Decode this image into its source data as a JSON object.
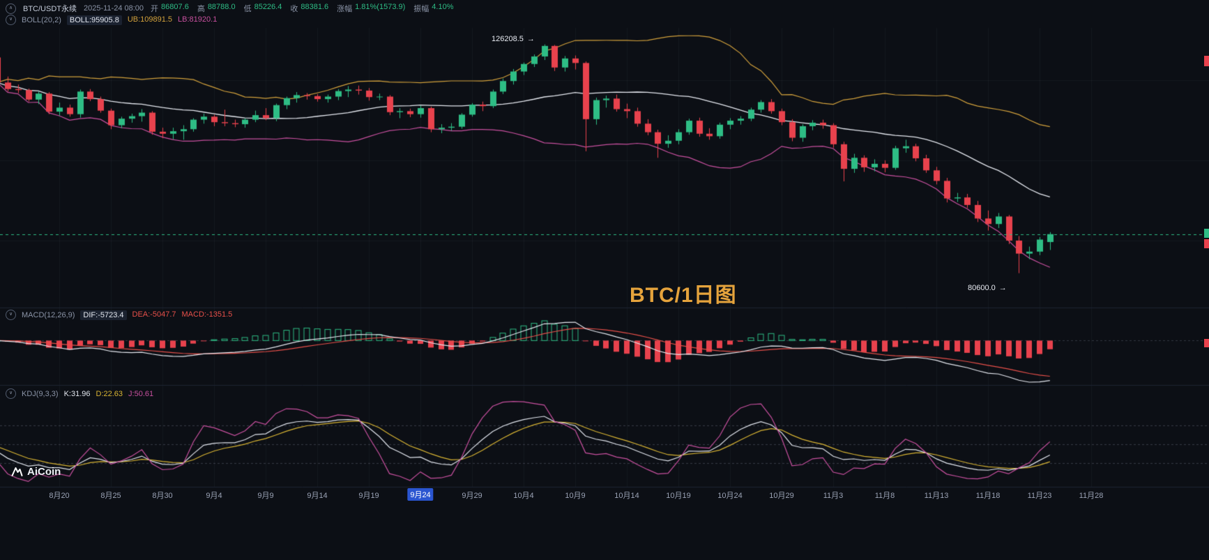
{
  "header": {
    "symbol": "BTC/USDT永续",
    "datetime": "2025-11-24 08:00",
    "fields": [
      {
        "label": "开",
        "value": "86807.6"
      },
      {
        "label": "高",
        "value": "88788.0"
      },
      {
        "label": "低",
        "value": "85226.4"
      },
      {
        "label": "收",
        "value": "88381.6"
      },
      {
        "label": "涨幅",
        "value": "1.81%(1573.9)"
      },
      {
        "label": "振幅",
        "value": "4.10%"
      }
    ]
  },
  "indicators": {
    "boll": {
      "name": "BOLL(20,2)",
      "items": [
        {
          "label": "BOLL:95905.8",
          "color": "#e2e6ee",
          "chip": true
        },
        {
          "label": "UB:109891.5",
          "color": "#d2a13c"
        },
        {
          "label": "LB:81920.1",
          "color": "#c8509f"
        }
      ]
    },
    "macd": {
      "name": "MACD(12,26,9)",
      "items": [
        {
          "label": "DIF:-5723.4",
          "color": "#e2e6ee",
          "chip": true
        },
        {
          "label": "DEA:-5047.7",
          "color": "#e8504a"
        },
        {
          "label": "MACD:-1351.5",
          "color": "#e8504a"
        }
      ]
    },
    "kdj": {
      "name": "KDJ(9,3,3)",
      "items": [
        {
          "label": "K:31.96",
          "color": "#e2e6ee"
        },
        {
          "label": "D:22.63",
          "color": "#d8b433"
        },
        {
          "label": "J:50.61",
          "color": "#c8509f"
        }
      ]
    }
  },
  "annotations": {
    "high": "126208.5",
    "low": "80600.0",
    "arrow": "→"
  },
  "watermark": "BTC/1日图",
  "logo": "AiCoin",
  "icons": {
    "chevron_up": "∧",
    "chevron_down": "∨"
  },
  "colors": {
    "up": "#2ebd85",
    "down": "#e8424d",
    "boll_mid": "#e6e9f0",
    "boll_upper": "#d2a13c",
    "boll_lower": "#c8509f",
    "dif": "#e6e9f0",
    "dea": "#e8504a",
    "k": "#e2e6ee",
    "d": "#d8b433",
    "j": "#c8509f",
    "current_price": "#2ebd85",
    "watermark": "#e5a33c",
    "grid": "rgba(140,150,170,0.07)",
    "separator": "#1d2433",
    "dashed_ref": "rgba(150,160,180,0.28)"
  },
  "chart_data": {
    "type": "candlestick",
    "title": "BTC/1日图",
    "symbol": "BTC/USDT永续",
    "interval": "1日",
    "period_datetime": "2025-11-24 08:00",
    "current_candle": {
      "open": 86807.6,
      "high": 88788.0,
      "low": 85226.4,
      "close": 88381.6,
      "change_pct": "1.81%",
      "change_abs": 1573.9,
      "amplitude": "4.10%"
    },
    "indicator_readings": {
      "BOLL": 95905.8,
      "UB": 109891.5,
      "LB": 81920.1,
      "DIF": -5723.4,
      "DEA": -5047.7,
      "MACD": -1351.5,
      "K": 31.96,
      "D": 22.63,
      "J": 50.61
    },
    "annotated_high": 126208.5,
    "annotated_low": 80600.0,
    "x_axis_labels": [
      {
        "i": 6,
        "label": "8月20"
      },
      {
        "i": 11,
        "label": "8月25"
      },
      {
        "i": 16,
        "label": "8月30"
      },
      {
        "i": 21,
        "label": "9月4"
      },
      {
        "i": 26,
        "label": "9月9"
      },
      {
        "i": 31,
        "label": "9月14"
      },
      {
        "i": 36,
        "label": "9月19"
      },
      {
        "i": 41,
        "label": "9月24",
        "highlighted": true
      },
      {
        "i": 46,
        "label": "9月29"
      },
      {
        "i": 51,
        "label": "10月4"
      },
      {
        "i": 56,
        "label": "10月9"
      },
      {
        "i": 61,
        "label": "10月14"
      },
      {
        "i": 66,
        "label": "10月19"
      },
      {
        "i": 71,
        "label": "10月24"
      },
      {
        "i": 76,
        "label": "10月29"
      },
      {
        "i": 81,
        "label": "11月3"
      },
      {
        "i": 86,
        "label": "11月8"
      },
      {
        "i": 91,
        "label": "11月13"
      },
      {
        "i": 96,
        "label": "11月18"
      },
      {
        "i": 101,
        "label": "11月23"
      },
      {
        "i": 106,
        "label": "11月28"
      }
    ],
    "candles_ohlc": [
      [
        123600,
        124500,
        117600,
        118600
      ],
      [
        118600,
        119800,
        116800,
        117300
      ],
      [
        117300,
        118200,
        116500,
        117100
      ],
      [
        117100,
        117400,
        114800,
        115200
      ],
      [
        115200,
        116800,
        114300,
        116400
      ],
      [
        116400,
        116700,
        112300,
        112800
      ],
      [
        112800,
        114600,
        112000,
        113600
      ],
      [
        113600,
        114200,
        111800,
        112300
      ],
      [
        112300,
        117200,
        111600,
        116800
      ],
      [
        116800,
        117300,
        114900,
        115300
      ],
      [
        115300,
        115800,
        112600,
        113000
      ],
      [
        113000,
        113400,
        109300,
        110100
      ],
      [
        110100,
        111800,
        109500,
        111400
      ],
      [
        111400,
        112400,
        110600,
        111900
      ],
      [
        111900,
        113300,
        110800,
        112600
      ],
      [
        112600,
        112900,
        108200,
        108800
      ],
      [
        108800,
        109600,
        107500,
        108400
      ],
      [
        108400,
        109600,
        107300,
        108900
      ],
      [
        108900,
        110100,
        107200,
        109300
      ],
      [
        109300,
        111500,
        108800,
        111200
      ],
      [
        111200,
        112400,
        110400,
        111800
      ],
      [
        111800,
        112200,
        109900,
        110700
      ],
      [
        110700,
        113200,
        109900,
        110500
      ],
      [
        110500,
        111200,
        109700,
        110300
      ],
      [
        110300,
        111500,
        109600,
        111200
      ],
      [
        111200,
        113000,
        110700,
        112100
      ],
      [
        112100,
        113500,
        111100,
        111500
      ],
      [
        111500,
        114400,
        110900,
        114100
      ],
      [
        114100,
        115800,
        113300,
        115500
      ],
      [
        115500,
        116700,
        114600,
        116100
      ],
      [
        116100,
        116500,
        115200,
        115900
      ],
      [
        115900,
        116300,
        114800,
        115300
      ],
      [
        115300,
        116200,
        114600,
        115800
      ],
      [
        115800,
        117300,
        115100,
        116900
      ],
      [
        116900,
        117900,
        115700,
        117200
      ],
      [
        117200,
        118000,
        116200,
        117000
      ],
      [
        117000,
        117500,
        115000,
        115700
      ],
      [
        115700,
        116400,
        115100,
        115800
      ],
      [
        115800,
        116100,
        112100,
        112700
      ],
      [
        112700,
        113500,
        111500,
        112900
      ],
      [
        112900,
        113400,
        111700,
        112300
      ],
      [
        112300,
        114000,
        111600,
        113500
      ],
      [
        113500,
        113800,
        108700,
        109300
      ],
      [
        109300,
        110300,
        108500,
        109600
      ],
      [
        109600,
        110500,
        109000,
        109800
      ],
      [
        109800,
        112500,
        109400,
        112200
      ],
      [
        112200,
        114500,
        111800,
        114200
      ],
      [
        114200,
        114800,
        112900,
        113900
      ],
      [
        113900,
        117200,
        113500,
        116800
      ],
      [
        116800,
        119400,
        116300,
        118900
      ],
      [
        118900,
        121300,
        118200,
        120800
      ],
      [
        120800,
        122600,
        120100,
        122300
      ],
      [
        122300,
        124200,
        121700,
        123800
      ],
      [
        123800,
        126208.5,
        123100,
        125900
      ],
      [
        125900,
        126100,
        120900,
        121600
      ],
      [
        121600,
        123900,
        120800,
        123400
      ],
      [
        123400,
        124000,
        121200,
        122500
      ],
      [
        122500,
        122800,
        104900,
        111300
      ],
      [
        111300,
        115600,
        110200,
        115100
      ],
      [
        115100,
        116000,
        113600,
        115400
      ],
      [
        115400,
        116200,
        112800,
        113300
      ],
      [
        113300,
        114400,
        111500,
        112900
      ],
      [
        112900,
        113600,
        109800,
        110400
      ],
      [
        110400,
        111300,
        108100,
        108700
      ],
      [
        108700,
        109200,
        103600,
        106400
      ],
      [
        106400,
        108100,
        105600,
        107000
      ],
      [
        107000,
        109300,
        106300,
        108700
      ],
      [
        108700,
        111400,
        108200,
        111000
      ],
      [
        111000,
        111600,
        107800,
        108400
      ],
      [
        108400,
        109500,
        107200,
        107900
      ],
      [
        107900,
        110600,
        107400,
        110200
      ],
      [
        110200,
        111500,
        109300,
        111000
      ],
      [
        111000,
        111900,
        110200,
        111400
      ],
      [
        111400,
        113600,
        110900,
        113200
      ],
      [
        113200,
        115100,
        112600,
        114700
      ],
      [
        114700,
        115300,
        112400,
        112900
      ],
      [
        112900,
        113400,
        110100,
        110700
      ],
      [
        110700,
        111300,
        106900,
        107600
      ],
      [
        107600,
        110300,
        106800,
        109900
      ],
      [
        109900,
        111100,
        109100,
        110600
      ],
      [
        110600,
        111200,
        109400,
        110100
      ],
      [
        110100,
        110500,
        105600,
        106300
      ],
      [
        106300,
        106800,
        98900,
        101400
      ],
      [
        101400,
        104400,
        100600,
        103600
      ],
      [
        103600,
        104100,
        100800,
        101700
      ],
      [
        101700,
        103300,
        100900,
        102400
      ],
      [
        102400,
        103100,
        100700,
        101600
      ],
      [
        101600,
        106000,
        101200,
        105500
      ],
      [
        105500,
        107200,
        104600,
        105900
      ],
      [
        105900,
        106400,
        102900,
        103500
      ],
      [
        103500,
        104200,
        100600,
        101100
      ],
      [
        101100,
        101800,
        98300,
        99000
      ],
      [
        99000,
        99600,
        94700,
        95500
      ],
      [
        95500,
        96600,
        94800,
        95700
      ],
      [
        95700,
        96400,
        93600,
        94200
      ],
      [
        94200,
        95000,
        90800,
        91500
      ],
      [
        91500,
        93100,
        89100,
        90400
      ],
      [
        90400,
        92600,
        89600,
        91900
      ],
      [
        91900,
        92200,
        86400,
        87100
      ],
      [
        87100,
        88000,
        80600,
        84500
      ],
      [
        84500,
        85900,
        83400,
        84900
      ],
      [
        84900,
        87800,
        84200,
        87300
      ],
      [
        86807.6,
        88788,
        85226.4,
        88381.6
      ]
    ]
  }
}
